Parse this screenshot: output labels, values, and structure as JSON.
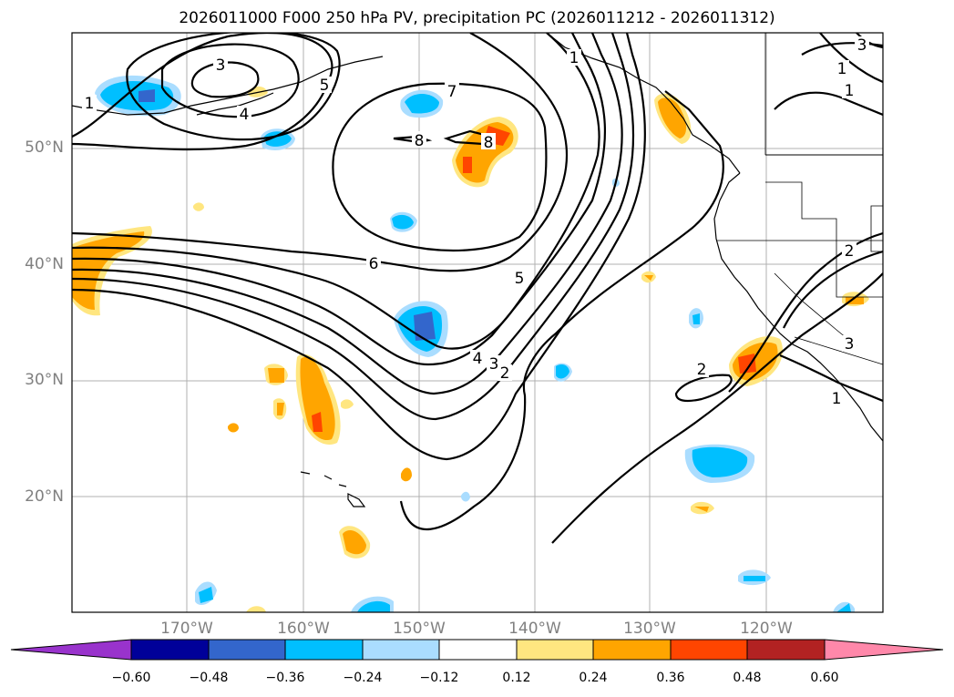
{
  "title": "2026011000 F000 250 hPa PV, precipitation PC (2026011212 - 2026011312)",
  "lat_labels": [
    "50°N",
    "40°N",
    "30°N",
    "20°N"
  ],
  "lon_labels": [
    "170°W",
    "160°W",
    "150°W",
    "140°W",
    "130°W",
    "120°W"
  ],
  "colorbar": {
    "ticks": [
      "−0.60",
      "−0.48",
      "−0.36",
      "−0.24",
      "−0.12",
      "0.12",
      "0.24",
      "0.36",
      "0.48",
      "0.60"
    ],
    "colors": [
      "#9933cc",
      "#000099",
      "#3366cc",
      "#00bfff",
      "#aaddff",
      "#ffffff",
      "#ffe680",
      "#ffa500",
      "#ff4500",
      "#b22222",
      "#ff88aa"
    ]
  },
  "contour_labels": [
    "3",
    "4",
    "5",
    "7",
    "8",
    "8",
    "6",
    "5",
    "4",
    "3",
    "2",
    "2",
    "1",
    "2",
    "3",
    "1",
    "3",
    "1",
    "1",
    "1"
  ]
}
